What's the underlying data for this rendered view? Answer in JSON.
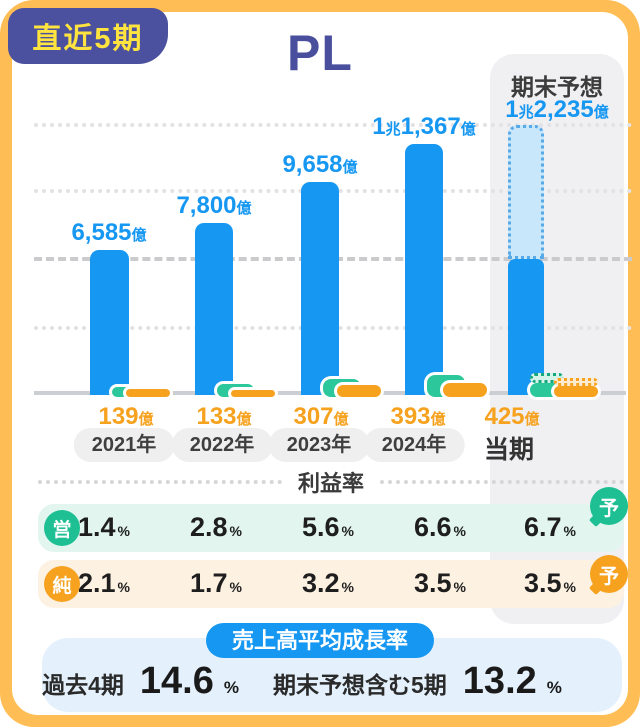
{
  "badge": {
    "label": "直近5期"
  },
  "title": "PL",
  "forecast": {
    "header": "期末予想"
  },
  "colors": {
    "frame": "#FFBE55",
    "indigo": "#4B519E",
    "badge_text": "#FFE33E",
    "bar_blue": "#1697F2",
    "bar_blue_forecast_fill": "#C9E7FB",
    "green": "#2CC79A",
    "orange": "#F6A21F",
    "operating_row_bg": "#E2F6EF",
    "net_row_bg": "#FDF1E2",
    "forecast_column_bg": "#F0F0F2",
    "growth_box_bg": "#E4F1FC"
  },
  "chart_data": {
    "type": "bar",
    "unit": "億円",
    "categories": [
      "2021年",
      "2022年",
      "2023年",
      "2024年",
      "当期"
    ],
    "series": [
      {
        "name": "売上高",
        "values": [
          6585,
          7800,
          9658,
          11367,
          12235
        ],
        "labels": [
          "6,585億",
          "7,800億",
          "9,658億",
          "1兆1,367億",
          "1兆2,235億"
        ],
        "color": "#1697F2"
      },
      {
        "name": "純利益",
        "values": [
          139,
          133,
          307,
          393,
          425
        ],
        "labels": [
          "139億",
          "133億",
          "307億",
          "393億",
          "425億"
        ],
        "color": "#F6A21F"
      }
    ],
    "forecast_index": 4,
    "forecast_label": "期末予想",
    "ylim": [
      0,
      12235
    ],
    "grid": "horizontal dotted, one dashed",
    "legend": "none"
  },
  "profit_table": {
    "title": "利益率",
    "unit": "%",
    "rows": [
      {
        "key": "operating",
        "icon": "営",
        "icon_color": "#1FBF94",
        "bg": "#E2F6EF",
        "values": [
          "1.4",
          "2.8",
          "5.6",
          "6.6",
          "6.7"
        ],
        "forecast_badge": "予"
      },
      {
        "key": "net",
        "icon": "純",
        "icon_color": "#F6A21F",
        "bg": "#FDF1E2",
        "values": [
          "2.1",
          "1.7",
          "3.2",
          "3.5",
          "3.5"
        ],
        "forecast_badge": "予"
      }
    ]
  },
  "growth": {
    "title": "売上高平均成長率",
    "stats": [
      {
        "label": "過去4期",
        "value": "14.6",
        "unit": "%"
      },
      {
        "label": "期末予想含む5期",
        "value": "13.2",
        "unit": "%"
      }
    ]
  }
}
